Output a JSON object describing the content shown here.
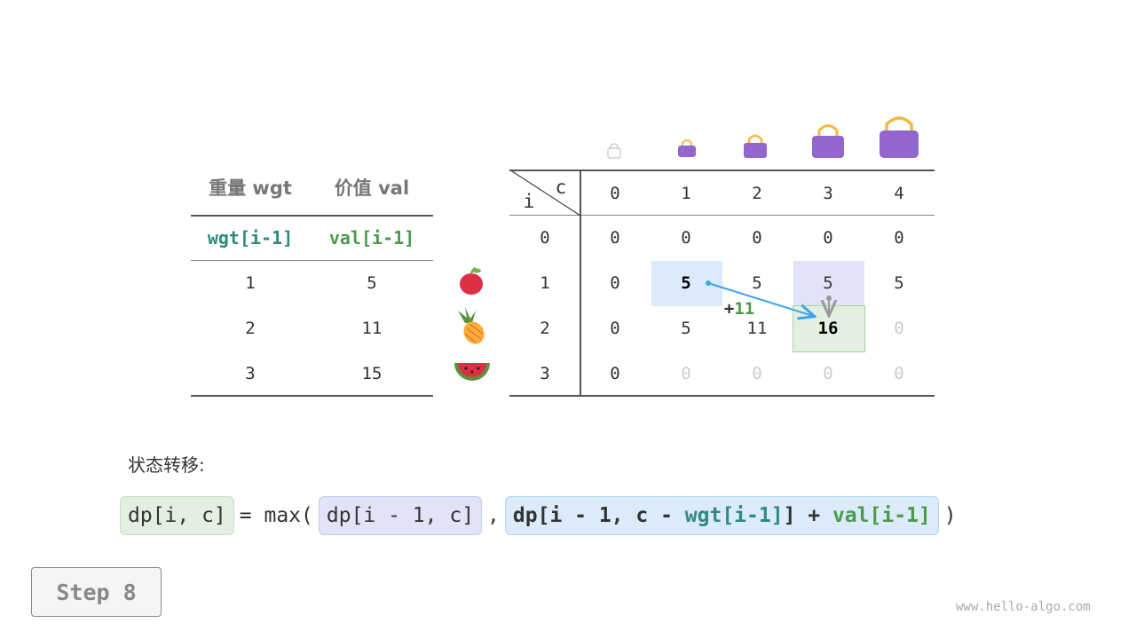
{
  "left_table": {
    "headers": [
      "重量 wgt",
      "价值 val"
    ],
    "sub_headers": [
      "wgt[i-1]",
      "val[i-1]"
    ],
    "rows": [
      [
        "1",
        "5"
      ],
      [
        "2",
        "11"
      ],
      [
        "3",
        "15"
      ]
    ],
    "fruit_icons": [
      "apple-icon",
      "pineapple-icon",
      "watermelon-icon"
    ]
  },
  "dp_table": {
    "corner_i": "i",
    "corner_c": "c",
    "col_headers": [
      "0",
      "1",
      "2",
      "3",
      "4"
    ],
    "row_headers": [
      "0",
      "1",
      "2",
      "3"
    ],
    "rows": [
      [
        "0",
        "0",
        "0",
        "0",
        "0"
      ],
      [
        "0",
        "5",
        "5",
        "5",
        "5"
      ],
      [
        "0",
        "5",
        "11",
        "16",
        "0"
      ],
      [
        "0",
        "0",
        "0",
        "0",
        "0"
      ]
    ],
    "bag_icons": [
      "bag-icon",
      "bag-icon",
      "bag-icon",
      "bag-icon",
      "bag-icon"
    ],
    "annotation": {
      "plus": "+",
      "value": "11"
    }
  },
  "colors": {
    "teal": "#2f8a80",
    "green": "#4c9a4c",
    "blue_fill": "#dbebf9",
    "purple_fill": "#e1e4f6",
    "green_fill": "#e3f0e1",
    "arrow": "#3fa6e8"
  },
  "formula": {
    "label": "状态转移:",
    "lhs": "dp[i, c]",
    "eq": "= max(",
    "opt1": "dp[i - 1, c]",
    "comma": ",",
    "opt2_a": "dp[i - 1, c - ",
    "opt2_wgt": "wgt[i-1]",
    "opt2_b": "] + ",
    "opt2_val": "val[i-1]",
    "close": ")"
  },
  "step_label": "Step 8",
  "watermark": "www.hello-algo.com"
}
